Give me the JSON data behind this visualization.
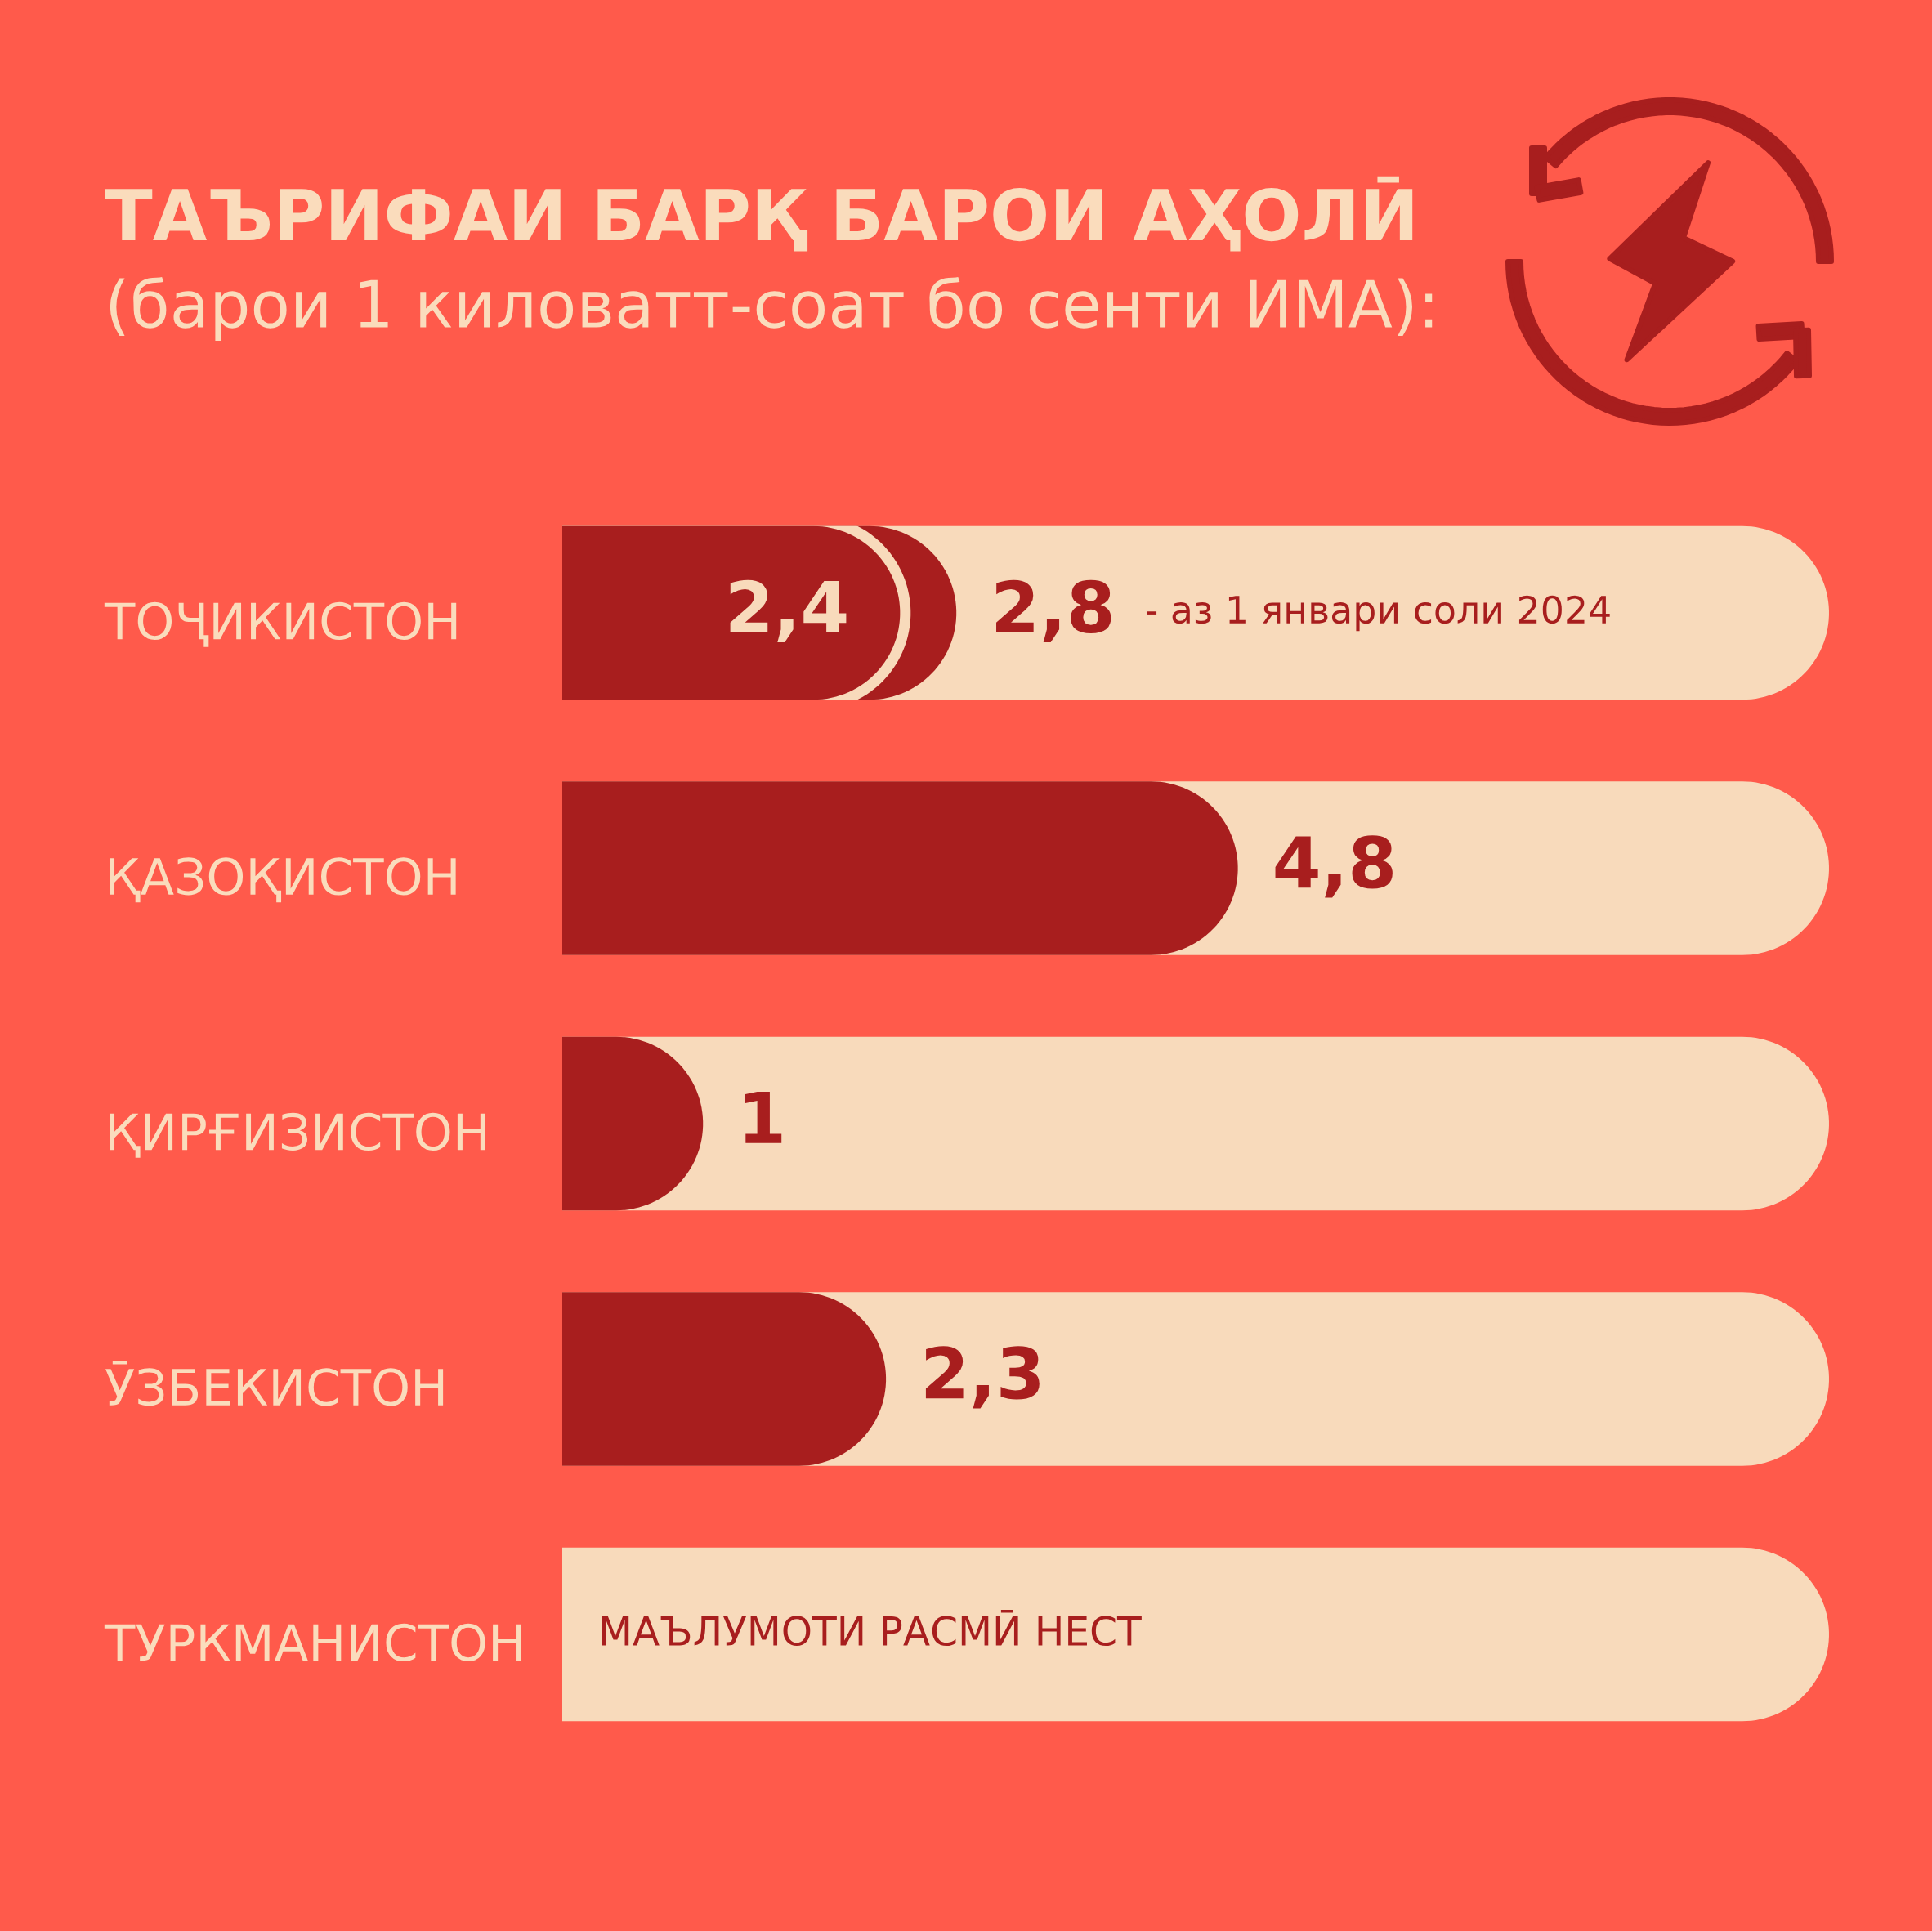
{
  "chart_data": {
    "type": "bar",
    "orientation": "horizontal",
    "title": "ТАЪРИФАИ БАРҚ БАРОИ АҲОЛӢ",
    "subtitle": "(барои 1 киловатт-соат бо сенти ИМА):",
    "categories": [
      "ТОҶИКИСТОН",
      "ҚАЗОҚИСТОН",
      "ҚИРҒИЗИСТОН",
      "ӮЗБЕКИСТОН",
      "ТУРКМАНИСТОН"
    ],
    "series": [
      {
        "color": "#a81e1e",
        "values": [
          null,
          4.8,
          1,
          2.3,
          null
        ],
        "value_labels": [
          null,
          "4,8",
          "1",
          "2,3",
          "МАЪЛУМОТИ РАСМӢ НЕСТ"
        ]
      },
      {
        "name": "- аз 1 январи соли 2024",
        "color": "#a81e1e",
        "values": [
          2.8,
          null,
          null,
          null,
          null
        ],
        "value_labels": [
          "2,8",
          null,
          null,
          null,
          null
        ]
      },
      {
        "color": "#a81e1e",
        "values": [
          2.4,
          null,
          null,
          null,
          null
        ],
        "value_labels": [
          "2,4",
          null,
          null,
          null,
          null
        ]
      }
    ],
    "xlim": [
      0,
      9
    ],
    "tick_labels": "y",
    "grid": false,
    "legend": false
  }
}
